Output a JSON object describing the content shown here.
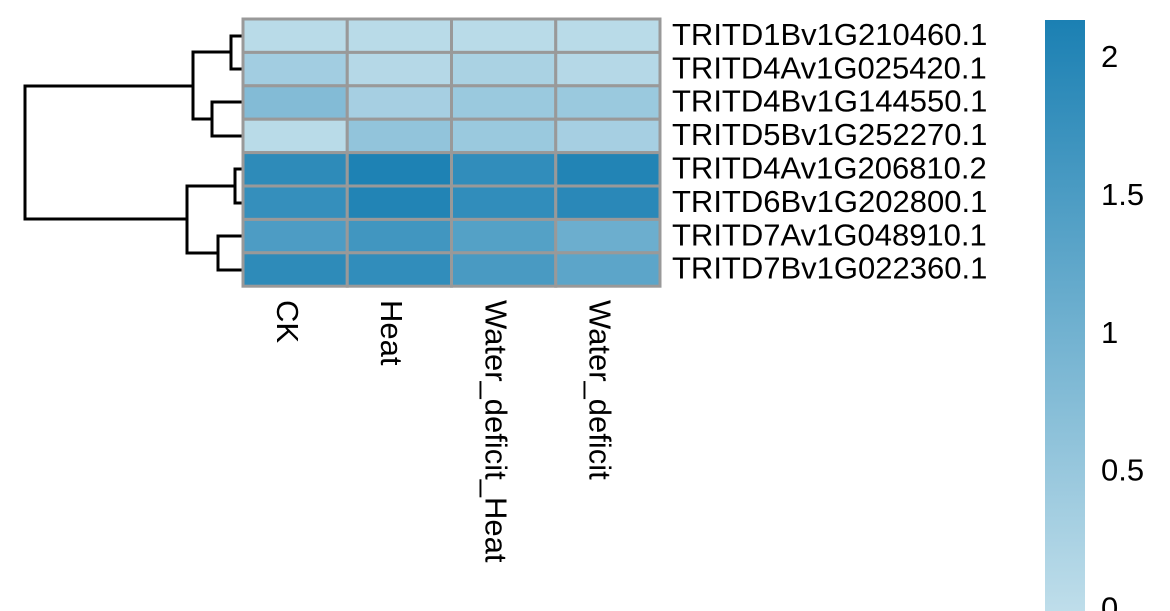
{
  "chart_data": {
    "type": "heatmap",
    "rows": [
      "TRITD1Bv1G210460.1",
      "TRITD4Av1G025420.1",
      "TRITD4Bv1G144550.1",
      "TRITD5Bv1G252270.1",
      "TRITD4Av1G206810.2",
      "TRITD6Bv1G202800.1",
      "TRITD7Av1G048910.1",
      "TRITD7Bv1G022360.1"
    ],
    "columns": [
      "CK",
      "Heat",
      "Water_deficit_Heat",
      "Water_deficit"
    ],
    "values": [
      [
        0.1,
        0.1,
        0.1,
        0.1
      ],
      [
        0.4,
        0.15,
        0.3,
        0.15
      ],
      [
        0.8,
        0.35,
        0.5,
        0.5
      ],
      [
        0.1,
        0.6,
        0.5,
        0.35
      ],
      [
        1.9,
        2.1,
        1.85,
        2.05
      ],
      [
        1.8,
        2.05,
        1.85,
        1.95
      ],
      [
        1.5,
        1.65,
        1.4,
        1.1
      ],
      [
        1.9,
        1.85,
        1.55,
        1.3
      ]
    ],
    "zlim": [
      0,
      2.14
    ],
    "zticks": [
      0,
      0.5,
      1,
      1.5,
      2
    ],
    "colors": [
      "#c1dfeb",
      "#1b80b3"
    ]
  }
}
